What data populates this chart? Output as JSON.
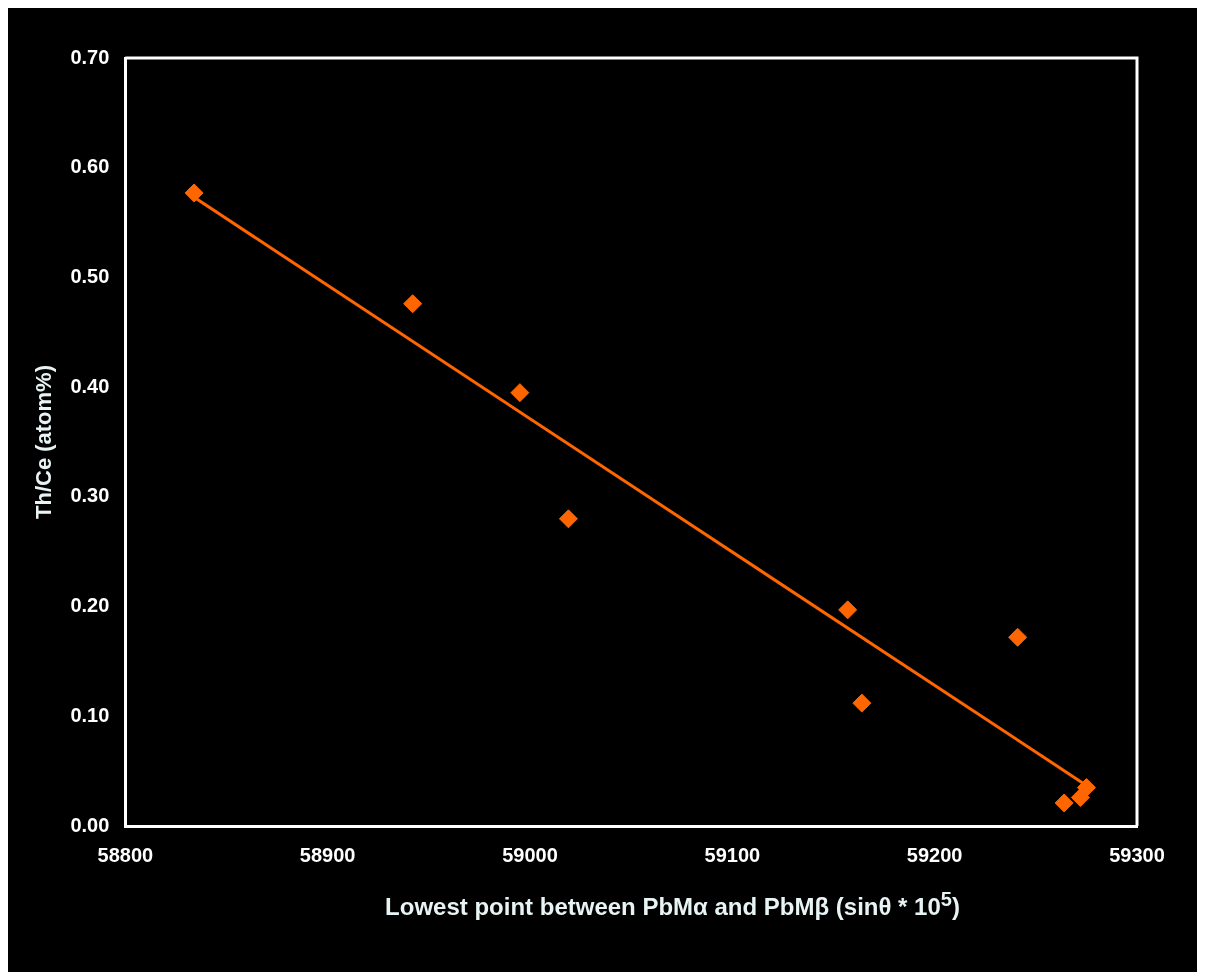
{
  "chart_data": {
    "type": "scatter",
    "xlabel": "Lowest point between PbMα and PbMβ (sinθ * 10$^{5}$)",
    "ylabel": "Th/Ce (atom%)",
    "xlim": [
      58800,
      59300
    ],
    "xticks": [
      58800,
      58900,
      59000,
      59100,
      59200,
      59300
    ],
    "ylim": [
      0,
      0.7
    ],
    "yticks": [
      {
        "value": 0,
        "label": "0.00"
      },
      {
        "value": 0.1,
        "label": "0.10"
      },
      {
        "value": 0.2,
        "label": "0.20"
      },
      {
        "value": 0.3,
        "label": "0.30"
      },
      {
        "value": 0.4,
        "label": "0.40"
      },
      {
        "value": 0.5,
        "label": "0.50"
      },
      {
        "value": 0.6,
        "label": "0.60"
      },
      {
        "value": 0.7,
        "label": "0.70"
      }
    ],
    "grid": false,
    "legend": false,
    "marker": "diamond",
    "series": [
      {
        "type": "scatter",
        "color": "#ff6600",
        "x": [
          58834,
          58942,
          58995,
          59019,
          59157,
          59164,
          59241,
          59264,
          59272,
          59275
        ],
        "values": [
          0.577,
          0.476,
          0.395,
          0.28,
          0.197,
          0.112,
          0.172,
          0.021,
          0.026,
          0.035
        ]
      },
      {
        "type": "line",
        "color": "#ff6600",
        "marker": "none",
        "x": [
          58834,
          59275
        ],
        "values": [
          0.573,
          0.037
        ]
      }
    ]
  }
}
